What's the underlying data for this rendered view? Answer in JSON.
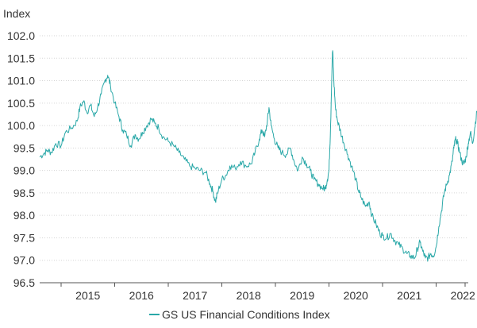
{
  "chart_data": {
    "type": "line",
    "ylabel": "Index",
    "xlabel": "",
    "ylim": [
      96.5,
      102.0
    ],
    "y_ticks": [
      "96.5",
      "97.0",
      "97.5",
      "98.0",
      "98.5",
      "99.0",
      "99.5",
      "100.0",
      "100.5",
      "101.0",
      "101.5",
      "102.0"
    ],
    "x_range": [
      2014.6,
      2022.6
    ],
    "x_ticks": [
      "2015",
      "2016",
      "2017",
      "2018",
      "2019",
      "2020",
      "2021",
      "2022"
    ],
    "grid": "horizontal",
    "legend_position": "bottom",
    "series": [
      {
        "name": "GS US Financial Conditions Index",
        "color": "#2aa8a8",
        "points": [
          [
            2014.6,
            99.3
          ],
          [
            2014.68,
            99.38
          ],
          [
            2014.75,
            99.45
          ],
          [
            2014.82,
            99.4
          ],
          [
            2014.9,
            99.6
          ],
          [
            2015.0,
            99.55
          ],
          [
            2015.08,
            99.85
          ],
          [
            2015.2,
            99.95
          ],
          [
            2015.3,
            100.1
          ],
          [
            2015.35,
            100.4
          ],
          [
            2015.42,
            100.55
          ],
          [
            2015.48,
            100.3
          ],
          [
            2015.55,
            100.45
          ],
          [
            2015.62,
            100.2
          ],
          [
            2015.68,
            100.4
          ],
          [
            2015.75,
            100.7
          ],
          [
            2015.82,
            101.0
          ],
          [
            2015.87,
            101.12
          ],
          [
            2015.92,
            100.9
          ],
          [
            2016.0,
            100.5
          ],
          [
            2016.08,
            100.2
          ],
          [
            2016.15,
            99.9
          ],
          [
            2016.22,
            99.8
          ],
          [
            2016.3,
            99.55
          ],
          [
            2016.38,
            99.8
          ],
          [
            2016.45,
            99.7
          ],
          [
            2016.52,
            99.85
          ],
          [
            2016.6,
            100.0
          ],
          [
            2016.68,
            100.15
          ],
          [
            2016.75,
            100.05
          ],
          [
            2016.82,
            99.95
          ],
          [
            2016.9,
            99.75
          ],
          [
            2017.0,
            99.65
          ],
          [
            2017.1,
            99.55
          ],
          [
            2017.2,
            99.4
          ],
          [
            2017.3,
            99.25
          ],
          [
            2017.4,
            99.1
          ],
          [
            2017.5,
            99.05
          ],
          [
            2017.6,
            99.0
          ],
          [
            2017.7,
            98.95
          ],
          [
            2017.78,
            98.7
          ],
          [
            2017.83,
            98.55
          ],
          [
            2017.88,
            98.3
          ],
          [
            2017.92,
            98.5
          ],
          [
            2018.0,
            98.8
          ],
          [
            2018.08,
            98.9
          ],
          [
            2018.15,
            99.1
          ],
          [
            2018.25,
            99.05
          ],
          [
            2018.35,
            99.2
          ],
          [
            2018.45,
            99.1
          ],
          [
            2018.55,
            99.15
          ],
          [
            2018.62,
            99.4
          ],
          [
            2018.7,
            99.7
          ],
          [
            2018.75,
            99.9
          ],
          [
            2018.8,
            99.75
          ],
          [
            2018.85,
            100.1
          ],
          [
            2018.88,
            100.4
          ],
          [
            2018.92,
            100.0
          ],
          [
            2018.98,
            99.7
          ],
          [
            2019.05,
            99.5
          ],
          [
            2019.12,
            99.4
          ],
          [
            2019.2,
            99.35
          ],
          [
            2019.28,
            99.5
          ],
          [
            2019.35,
            99.2
          ],
          [
            2019.42,
            99.0
          ],
          [
            2019.5,
            99.3
          ],
          [
            2019.58,
            99.15
          ],
          [
            2019.65,
            99.0
          ],
          [
            2019.72,
            98.8
          ],
          [
            2019.8,
            98.7
          ],
          [
            2019.88,
            98.6
          ],
          [
            2019.93,
            98.6
          ],
          [
            2019.97,
            98.8
          ],
          [
            2020.0,
            99.0
          ],
          [
            2020.03,
            100.0
          ],
          [
            2020.06,
            101.5
          ],
          [
            2020.07,
            101.67
          ],
          [
            2020.09,
            101.0
          ],
          [
            2020.12,
            100.4
          ],
          [
            2020.16,
            100.1
          ],
          [
            2020.22,
            99.85
          ],
          [
            2020.28,
            99.6
          ],
          [
            2020.35,
            99.35
          ],
          [
            2020.42,
            99.1
          ],
          [
            2020.5,
            98.8
          ],
          [
            2020.55,
            98.55
          ],
          [
            2020.6,
            98.4
          ],
          [
            2020.68,
            98.2
          ],
          [
            2020.75,
            98.3
          ],
          [
            2020.8,
            98.0
          ],
          [
            2020.88,
            97.8
          ],
          [
            2020.95,
            97.6
          ],
          [
            2021.0,
            97.55
          ],
          [
            2021.08,
            97.5
          ],
          [
            2021.15,
            97.6
          ],
          [
            2021.22,
            97.45
          ],
          [
            2021.3,
            97.35
          ],
          [
            2021.38,
            97.25
          ],
          [
            2021.45,
            97.15
          ],
          [
            2021.52,
            97.1
          ],
          [
            2021.6,
            97.05
          ],
          [
            2021.65,
            97.25
          ],
          [
            2021.7,
            97.4
          ],
          [
            2021.75,
            97.2
          ],
          [
            2021.8,
            97.05
          ],
          [
            2021.85,
            97.05
          ],
          [
            2021.9,
            97.15
          ],
          [
            2021.95,
            97.1
          ],
          [
            2022.0,
            97.3
          ],
          [
            2022.05,
            97.75
          ],
          [
            2022.1,
            98.1
          ],
          [
            2022.15,
            98.5
          ],
          [
            2022.2,
            98.7
          ],
          [
            2022.25,
            98.9
          ],
          [
            2022.3,
            99.2
          ],
          [
            2022.33,
            99.5
          ],
          [
            2022.36,
            99.7
          ],
          [
            2022.4,
            99.6
          ],
          [
            2022.44,
            99.4
          ],
          [
            2022.48,
            99.2
          ],
          [
            2022.52,
            99.15
          ],
          [
            2022.56,
            99.3
          ],
          [
            2022.6,
            99.6
          ],
          [
            2022.64,
            99.85
          ],
          [
            2022.68,
            99.6
          ],
          [
            2022.72,
            99.95
          ],
          [
            2022.76,
            100.3
          ],
          [
            2022.8,
            100.6
          ],
          [
            2022.83,
            100.75
          ]
        ]
      }
    ]
  }
}
